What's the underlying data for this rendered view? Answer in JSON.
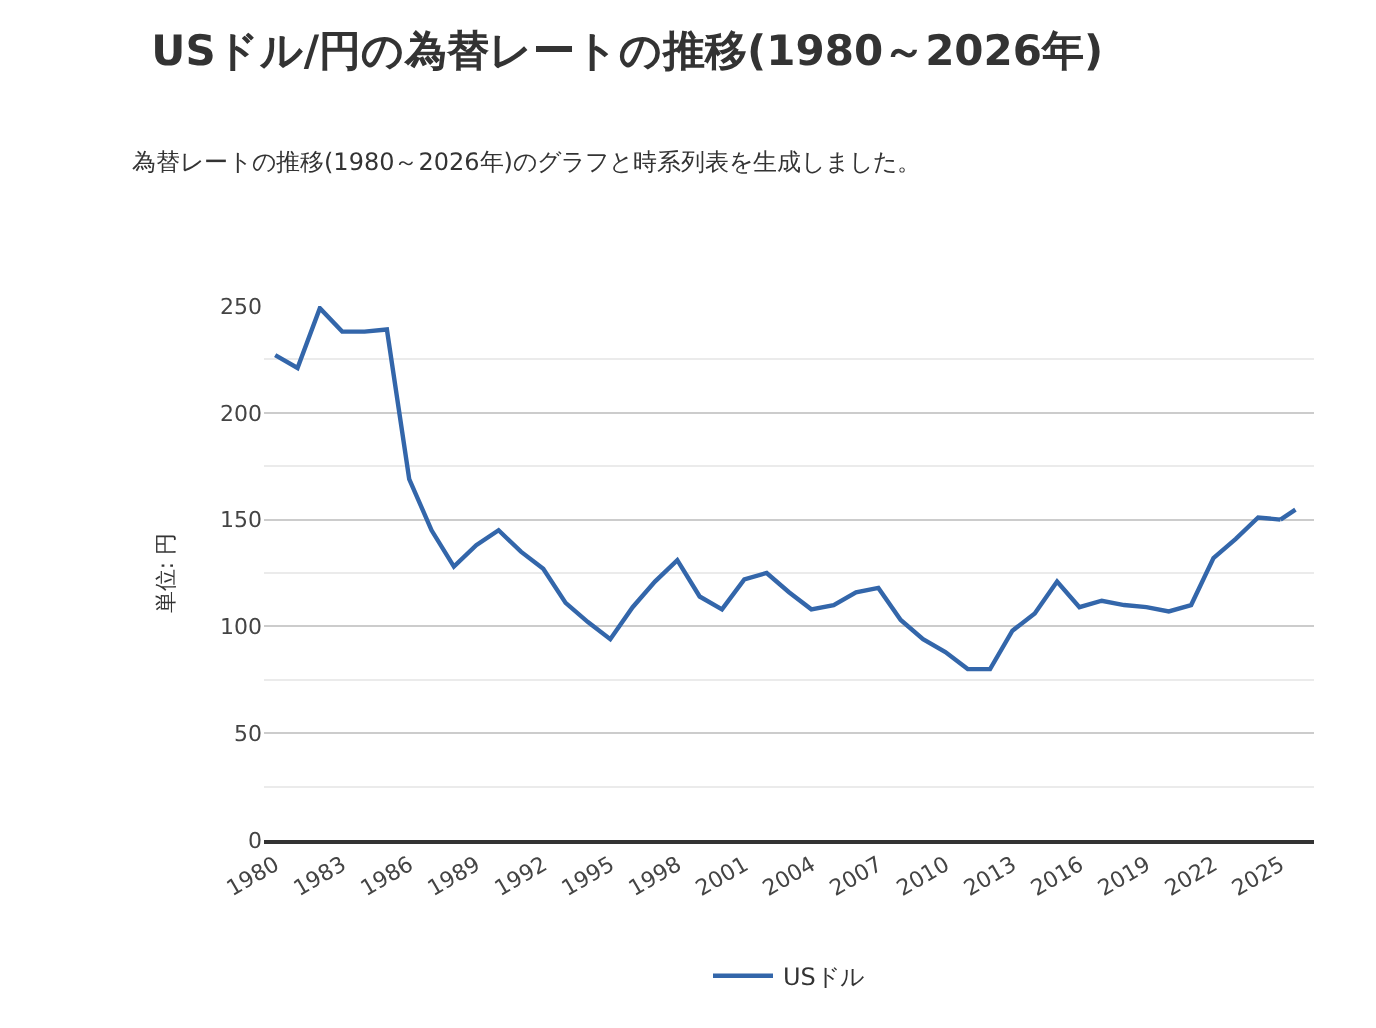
{
  "chart_data": {
    "type": "line",
    "title": "USドル/円の為替レートの推移(1980～2026年)",
    "subtitle": "為替レートの推移(1980～2026年)のグラフと時系列表を生成しました。",
    "ylabel": "単位: 円",
    "x": [
      1980,
      1981,
      1982,
      1983,
      1984,
      1985,
      1986,
      1987,
      1988,
      1989,
      1990,
      1991,
      1992,
      1993,
      1994,
      1995,
      1996,
      1997,
      1998,
      1999,
      2000,
      2001,
      2002,
      2003,
      2004,
      2005,
      2006,
      2007,
      2008,
      2009,
      2010,
      2011,
      2012,
      2013,
      2014,
      2015,
      2016,
      2017,
      2018,
      2019,
      2020,
      2021,
      2022,
      2023,
      2024,
      2025,
      2026
    ],
    "series": [
      {
        "name": "USドル",
        "color": "#3366aa",
        "line_style": "solid",
        "values": [
          227,
          221,
          249,
          238,
          238,
          239,
          169,
          145,
          128,
          138,
          145,
          135,
          127,
          111,
          102,
          94,
          109,
          121,
          131,
          114,
          108,
          122,
          125,
          116,
          108,
          110,
          116,
          118,
          103,
          94,
          88,
          80,
          80,
          98,
          106,
          121,
          109,
          112,
          110,
          109,
          107,
          110,
          132,
          141,
          151,
          150,
          null
        ]
      },
      {
        "color": "#3366aa",
        "line_style": "dashed",
        "values": [
          null,
          null,
          null,
          null,
          null,
          null,
          null,
          null,
          null,
          null,
          null,
          null,
          null,
          null,
          null,
          null,
          null,
          null,
          null,
          null,
          null,
          null,
          null,
          null,
          null,
          null,
          null,
          null,
          null,
          null,
          null,
          null,
          null,
          null,
          null,
          null,
          null,
          null,
          null,
          null,
          null,
          null,
          null,
          null,
          null,
          150,
          157
        ]
      }
    ],
    "xlim": [
      1979.5,
      2026.5
    ],
    "xticks": [
      1980,
      1983,
      1986,
      1989,
      1992,
      1995,
      1998,
      2001,
      2004,
      2007,
      2010,
      2013,
      2016,
      2019,
      2022,
      2025
    ],
    "ylim": [
      0,
      250
    ],
    "yticks": [
      0,
      50,
      100,
      150,
      200,
      250
    ],
    "grid": "y",
    "legend": "bottom",
    "marker": "none"
  }
}
